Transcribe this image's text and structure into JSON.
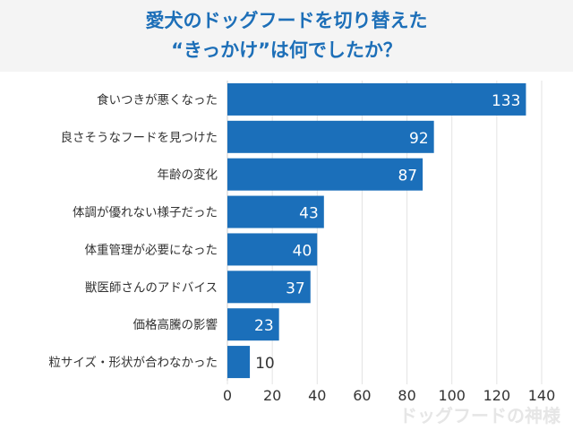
{
  "chart_data": {
    "type": "bar",
    "orientation": "horizontal",
    "title": [
      "愛犬のドッグフードを切り替えた",
      "“きっかけ”は何でしたか？"
    ],
    "categories": [
      "食いつきが悪くなった",
      "良さそうなフードを見つけた",
      "年齢の変化",
      "体調が優れない様子だった",
      "体重管理が必要になった",
      "獣医師さんのアドバイス",
      "価格高騰の影響",
      "粒サイズ・形状が合わなかった"
    ],
    "values": [
      133,
      92,
      87,
      43,
      40,
      37,
      23,
      10
    ],
    "xlim": [
      0,
      140
    ],
    "xticks": [
      0,
      20,
      40,
      60,
      80,
      100,
      120,
      140
    ],
    "grid": true,
    "bar_color": "#1b6fba",
    "title_color": "#1d6fb8"
  },
  "watermark": "ドッグフードの神様"
}
